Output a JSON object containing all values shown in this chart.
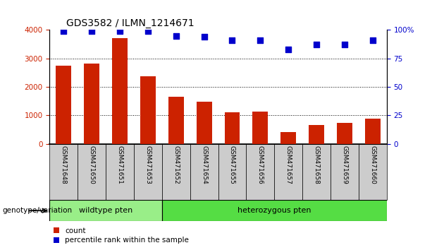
{
  "title": "GDS3582 / ILMN_1214671",
  "categories": [
    "GSM471648",
    "GSM471650",
    "GSM471651",
    "GSM471653",
    "GSM471652",
    "GSM471654",
    "GSM471655",
    "GSM471656",
    "GSM471657",
    "GSM471658",
    "GSM471659",
    "GSM471660"
  ],
  "bar_values": [
    2750,
    2830,
    3720,
    2370,
    1650,
    1490,
    1110,
    1120,
    400,
    650,
    730,
    880
  ],
  "scatter_values": [
    99,
    99,
    99,
    99,
    95,
    94,
    91,
    91,
    83,
    87,
    87,
    91
  ],
  "bar_color": "#cc2200",
  "scatter_color": "#0000cc",
  "ylim_left": [
    0,
    4000
  ],
  "ylim_right": [
    0,
    100
  ],
  "yticks_left": [
    0,
    1000,
    2000,
    3000,
    4000
  ],
  "yticks_right": [
    0,
    25,
    50,
    75,
    100
  ],
  "yticklabels_right": [
    "0",
    "25",
    "50",
    "75",
    "100%"
  ],
  "grid_values": [
    1000,
    2000,
    3000
  ],
  "wildtype_count": 4,
  "heterozygous_count": 8,
  "wildtype_label": "wildtype pten",
  "heterozygous_label": "heterozygous pten",
  "wildtype_color": "#99ee88",
  "heterozygous_color": "#55dd44",
  "genotype_label": "genotype/variation",
  "legend_bar_label": "count",
  "legend_scatter_label": "percentile rank within the sample",
  "bg_color": "#cccccc",
  "plot_bg": "#ffffff",
  "bar_width": 0.55,
  "scatter_marker_size": 28
}
